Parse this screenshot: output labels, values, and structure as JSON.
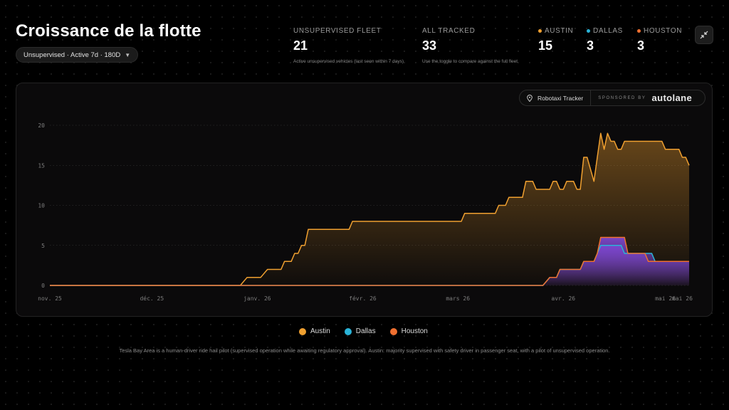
{
  "page": {
    "title": "Croissance de la flotte",
    "filter_label": "Unsupervised · Active 7d · 180D",
    "collapse_icon": "collapse-arrows-icon"
  },
  "stats": {
    "unsupervised": {
      "label": "UNSUPERVISED FLEET",
      "value": "21",
      "desc": "Active unsupervised vehicles (last seen within 7 days)"
    },
    "all_tracked": {
      "label": "ALL TRACKED",
      "value": "33",
      "desc": "Use the toggle to compare against the full fleet"
    },
    "cities": [
      {
        "label": "AUSTIN",
        "value": "15",
        "color": "#f0a030"
      },
      {
        "label": "DALLAS",
        "value": "3",
        "color": "#2ab4d8"
      },
      {
        "label": "HOUSTON",
        "value": "3",
        "color": "#f07030"
      }
    ]
  },
  "branding": {
    "tracker_label": "Robotaxi Tracker",
    "sponsored_label": "SPONSORED BY",
    "sponsor_logo": "autolane",
    "pin_icon": "location-pin-icon"
  },
  "chart_data": {
    "type": "area",
    "title": "",
    "xlabel": "",
    "ylabel": "",
    "ylim": [
      0,
      20
    ],
    "y_ticks": [
      0,
      5,
      10,
      15,
      20
    ],
    "x_ticks": [
      "nov. 25",
      "déc. 25",
      "janv. 26",
      "févr. 26",
      "mars 26",
      "avr. 26",
      "mai 26",
      "mai 26"
    ],
    "x_tick_days": [
      0,
      30,
      61,
      92,
      120,
      151,
      181,
      186
    ],
    "grid": true,
    "legend_position": "bottom",
    "series": [
      {
        "name": "Austin",
        "color": "#f0a030",
        "points": [
          [
            0,
            0
          ],
          [
            56,
            0
          ],
          [
            58,
            1
          ],
          [
            62,
            1
          ],
          [
            64,
            2
          ],
          [
            68,
            2
          ],
          [
            69,
            3
          ],
          [
            71,
            3
          ],
          [
            72,
            4
          ],
          [
            73,
            4
          ],
          [
            74,
            5
          ],
          [
            75,
            5
          ],
          [
            76,
            7
          ],
          [
            88,
            7
          ],
          [
            89,
            8
          ],
          [
            121,
            8
          ],
          [
            122,
            9
          ],
          [
            131,
            9
          ],
          [
            132,
            10
          ],
          [
            134,
            10
          ],
          [
            135,
            11
          ],
          [
            139,
            11
          ],
          [
            140,
            13
          ],
          [
            142,
            13
          ],
          [
            143,
            12
          ],
          [
            147,
            12
          ],
          [
            148,
            13
          ],
          [
            149,
            13
          ],
          [
            150,
            12
          ],
          [
            151,
            12
          ],
          [
            152,
            13
          ],
          [
            154,
            13
          ],
          [
            155,
            12
          ],
          [
            156,
            12
          ],
          [
            157,
            16
          ],
          [
            158,
            16
          ],
          [
            160,
            13
          ],
          [
            161,
            16
          ],
          [
            162,
            19
          ],
          [
            163,
            17
          ],
          [
            164,
            19
          ],
          [
            165,
            18
          ],
          [
            166,
            18
          ],
          [
            167,
            17
          ],
          [
            168,
            17
          ],
          [
            169,
            18
          ],
          [
            180,
            18
          ],
          [
            181,
            17
          ],
          [
            185,
            17
          ],
          [
            186,
            16
          ],
          [
            187,
            16
          ],
          [
            188,
            15
          ]
        ]
      },
      {
        "name": "Dallas",
        "color": "#2ab4d8",
        "points": [
          [
            0,
            0
          ],
          [
            145,
            0
          ],
          [
            147,
            1
          ],
          [
            149,
            1
          ],
          [
            150,
            2
          ],
          [
            156,
            2
          ],
          [
            157,
            3
          ],
          [
            160,
            3
          ],
          [
            161,
            4
          ],
          [
            162,
            5
          ],
          [
            168,
            5
          ],
          [
            169,
            4
          ],
          [
            177,
            4
          ],
          [
            178,
            3
          ],
          [
            188,
            3
          ]
        ]
      },
      {
        "name": "Houston",
        "color": "#f07030",
        "points": [
          [
            0,
            0
          ],
          [
            145,
            0
          ],
          [
            147,
            1
          ],
          [
            149,
            1
          ],
          [
            150,
            2
          ],
          [
            156,
            2
          ],
          [
            157,
            3
          ],
          [
            160,
            3
          ],
          [
            161,
            4
          ],
          [
            162,
            6
          ],
          [
            169,
            6
          ],
          [
            170,
            4
          ],
          [
            175,
            4
          ],
          [
            176,
            3
          ],
          [
            188,
            3
          ]
        ]
      }
    ]
  },
  "legend": {
    "items": [
      {
        "label": "Austin",
        "color": "#f0a030"
      },
      {
        "label": "Dallas",
        "color": "#2ab4d8"
      },
      {
        "label": "Houston",
        "color": "#f07030"
      }
    ]
  },
  "footnote": "Tesla Bay Area is a human-driver ride hail pilot (supervised operation while awaiting regulatory approval). Austin: majority supervised with safety driver in passenger seat, with a pilot of unsupervised operation."
}
